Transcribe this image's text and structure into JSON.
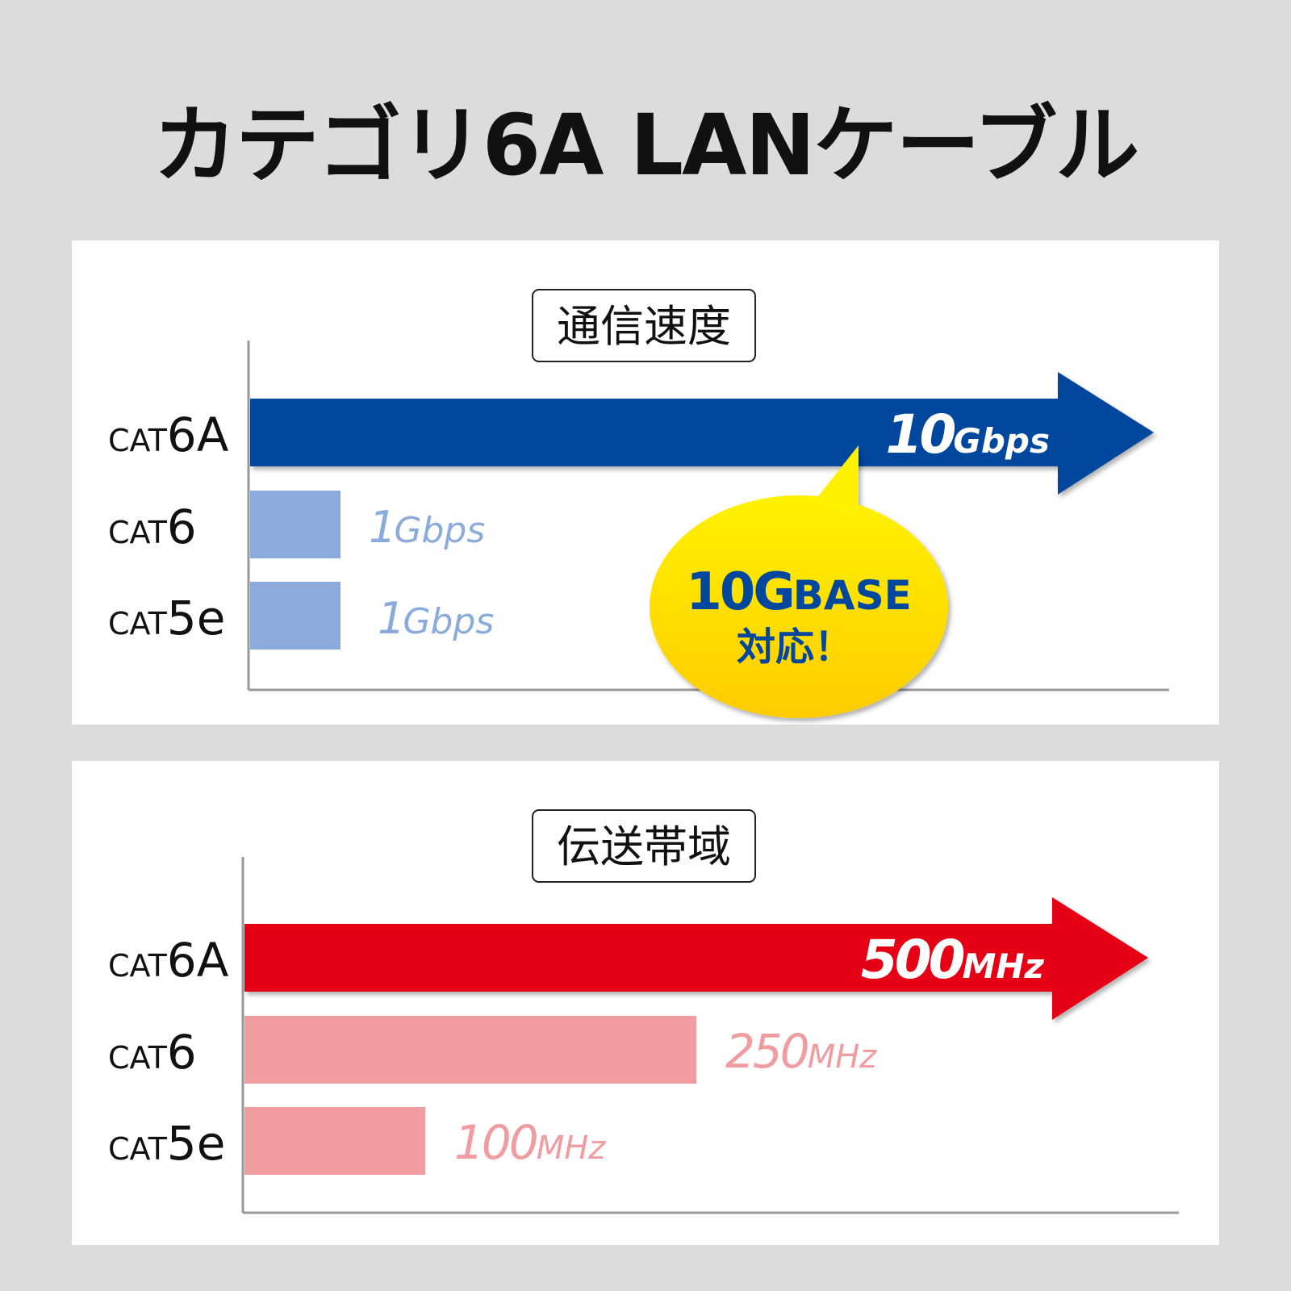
{
  "title": "カテゴリ6A LANケーブル",
  "chart_data": [
    {
      "type": "bar",
      "orientation": "horizontal",
      "title": "通信速度",
      "categories": [
        "CAT6A",
        "CAT6",
        "CAT5e"
      ],
      "category_labels": [
        {
          "prefix": "CAT",
          "suffix": "6A"
        },
        {
          "prefix": "CAT",
          "suffix": "6"
        },
        {
          "prefix": "CAT",
          "suffix": "5e"
        }
      ],
      "values": [
        10,
        1,
        1
      ],
      "unit": "Gbps",
      "data_labels": [
        {
          "num": "10",
          "unit": "Gbps"
        },
        {
          "num": "1",
          "unit": "Gbps"
        },
        {
          "num": "1",
          "unit": "Gbps"
        }
      ],
      "colors": [
        "#00479d",
        "#8aabdb",
        "#8aabdb"
      ],
      "highlight_shape": "arrow",
      "callout": {
        "line1_num": "10G",
        "line1_text": "BASE",
        "line2": "対応！",
        "text_color": "#00479d",
        "fill_top": "#fff200",
        "fill_bottom": "#ffcc00"
      }
    },
    {
      "type": "bar",
      "orientation": "horizontal",
      "title": "伝送帯域",
      "categories": [
        "CAT6A",
        "CAT6",
        "CAT5e"
      ],
      "category_labels": [
        {
          "prefix": "CAT",
          "suffix": "6A"
        },
        {
          "prefix": "CAT",
          "suffix": "6"
        },
        {
          "prefix": "CAT",
          "suffix": "5e"
        }
      ],
      "values": [
        500,
        250,
        100
      ],
      "unit": "MHz",
      "data_labels": [
        {
          "num": "500",
          "unit": "MHz"
        },
        {
          "num": "250",
          "unit": "MHz"
        },
        {
          "num": "100",
          "unit": "MHz"
        }
      ],
      "colors": [
        "#e60012",
        "#f19ca0",
        "#f19ca0"
      ],
      "highlight_shape": "arrow"
    }
  ]
}
